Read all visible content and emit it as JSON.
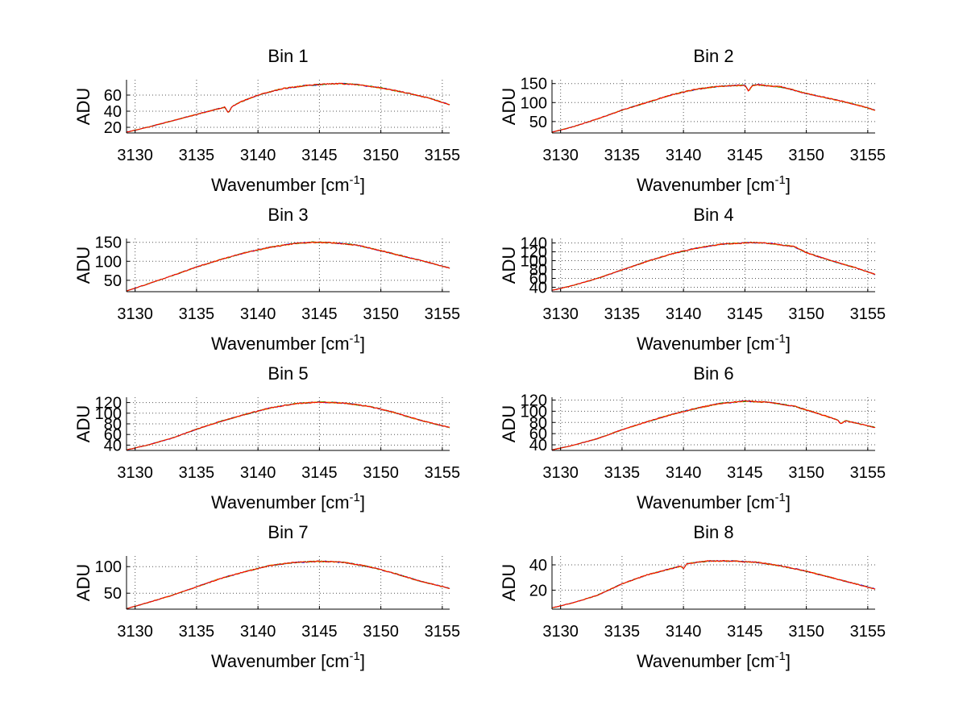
{
  "chart_data": [
    {
      "type": "line",
      "title": "Bin 1",
      "xlabel": "Wavenumber [cm",
      "xlabel_sup": "-1",
      "xlabel_end": "]",
      "ylabel": "ADU",
      "xlim": [
        3129.3,
        3155.6
      ],
      "ylim": [
        13,
        79
      ],
      "grid": true,
      "xticks": [
        3130,
        3135,
        3140,
        3145,
        3150,
        3155
      ],
      "yticks": [
        20,
        40,
        60
      ],
      "x": [
        3129.3,
        3131,
        3133,
        3135,
        3136.5,
        3137.3,
        3137.6,
        3137.9,
        3138.5,
        3140,
        3142,
        3144,
        3146,
        3147,
        3148,
        3150,
        3152,
        3154,
        3155.6
      ],
      "y": [
        14,
        20,
        28,
        36,
        42,
        45,
        38,
        46,
        51,
        60,
        68,
        72,
        74,
        74,
        73,
        69,
        63,
        56,
        48
      ]
    },
    {
      "type": "line",
      "title": "Bin 2",
      "xlabel": "Wavenumber [cm",
      "xlabel_sup": "-1",
      "xlabel_end": "]",
      "ylabel": "ADU",
      "xlim": [
        3129.3,
        3155.6
      ],
      "ylim": [
        20,
        160
      ],
      "grid": true,
      "xticks": [
        3130,
        3135,
        3140,
        3145,
        3150,
        3155
      ],
      "yticks": [
        50,
        100,
        150
      ],
      "x": [
        3129.3,
        3131,
        3133,
        3135,
        3137,
        3139,
        3141,
        3143,
        3145,
        3145.3,
        3145.6,
        3146,
        3148,
        3150,
        3152,
        3154,
        3155.6
      ],
      "y": [
        22,
        36,
        57,
        80,
        100,
        120,
        135,
        143,
        146,
        130,
        145,
        147,
        141,
        124,
        110,
        95,
        80
      ]
    },
    {
      "type": "line",
      "title": "Bin 3",
      "xlabel": "Wavenumber [cm",
      "xlabel_sup": "-1",
      "xlabel_end": "]",
      "ylabel": "ADU",
      "xlim": [
        3129.3,
        3155.6
      ],
      "ylim": [
        20,
        160
      ],
      "grid": true,
      "xticks": [
        3130,
        3135,
        3140,
        3145,
        3150,
        3155
      ],
      "yticks": [
        50,
        100,
        150
      ],
      "x": [
        3129.3,
        3131,
        3133,
        3135,
        3137,
        3139,
        3141,
        3143,
        3144.5,
        3146,
        3148,
        3150,
        3152,
        3154,
        3155.6
      ],
      "y": [
        22,
        40,
        62,
        85,
        105,
        123,
        137,
        147,
        150,
        149,
        143,
        128,
        112,
        96,
        82
      ]
    },
    {
      "type": "line",
      "title": "Bin 4",
      "xlabel": "Wavenumber [cm",
      "xlabel_sup": "-1",
      "xlabel_end": "]",
      "ylabel": "ADU",
      "xlim": [
        3129.3,
        3155.6
      ],
      "ylim": [
        30,
        150
      ],
      "grid": true,
      "xticks": [
        3130,
        3135,
        3140,
        3145,
        3150,
        3155
      ],
      "yticks": [
        40,
        60,
        80,
        100,
        120,
        140
      ],
      "x": [
        3129.3,
        3131,
        3133,
        3135,
        3137,
        3139,
        3141,
        3143,
        3145.5,
        3147,
        3149,
        3150,
        3152,
        3154,
        3155.6
      ],
      "y": [
        33,
        44,
        60,
        79,
        98,
        115,
        128,
        137,
        141,
        139,
        132,
        118,
        100,
        84,
        69
      ]
    },
    {
      "type": "line",
      "title": "Bin 5",
      "xlabel": "Wavenumber [cm",
      "xlabel_sup": "-1",
      "xlabel_end": "]",
      "ylabel": "ADU",
      "xlim": [
        3129.3,
        3155.6
      ],
      "ylim": [
        30,
        130
      ],
      "grid": true,
      "xticks": [
        3130,
        3135,
        3140,
        3145,
        3150,
        3155
      ],
      "yticks": [
        40,
        60,
        80,
        100,
        120
      ],
      "x": [
        3129.3,
        3131,
        3133,
        3135,
        3137,
        3139,
        3141,
        3143,
        3145,
        3147,
        3149,
        3151,
        3153,
        3155.6
      ],
      "y": [
        31,
        40,
        53,
        70,
        85,
        98,
        110,
        118,
        121,
        119,
        113,
        102,
        88,
        73
      ]
    },
    {
      "type": "line",
      "title": "Bin 6",
      "xlabel": "Wavenumber [cm",
      "xlabel_sup": "-1",
      "xlabel_end": "]",
      "ylabel": "ADU",
      "xlim": [
        3129.3,
        3155.6
      ],
      "ylim": [
        30,
        125
      ],
      "grid": true,
      "xticks": [
        3130,
        3135,
        3140,
        3145,
        3150,
        3155
      ],
      "yticks": [
        40,
        60,
        80,
        100,
        120
      ],
      "x": [
        3129.3,
        3131,
        3133,
        3135,
        3137,
        3139,
        3141,
        3143,
        3145,
        3147,
        3149,
        3150.5,
        3152.5,
        3152.8,
        3153.2,
        3155.6
      ],
      "y": [
        31,
        39,
        51,
        67,
        81,
        94,
        105,
        114,
        118,
        116,
        109,
        99,
        85,
        78,
        83,
        71
      ]
    },
    {
      "type": "line",
      "title": "Bin 7",
      "xlabel": "Wavenumber [cm",
      "xlabel_sup": "-1",
      "xlabel_end": "]",
      "ylabel": "ADU",
      "xlim": [
        3129.3,
        3155.6
      ],
      "ylim": [
        20,
        120
      ],
      "grid": true,
      "xticks": [
        3130,
        3135,
        3140,
        3145,
        3150,
        3155
      ],
      "yticks": [
        50,
        100
      ],
      "x": [
        3129.3,
        3131,
        3133,
        3135,
        3137,
        3139,
        3141,
        3143,
        3145,
        3147,
        3149,
        3151,
        3153,
        3155.6
      ],
      "y": [
        21,
        32,
        46,
        62,
        78,
        91,
        102,
        108,
        110,
        108,
        100,
        88,
        74,
        59
      ]
    },
    {
      "type": "line",
      "title": "Bin 8",
      "xlabel": "Wavenumber [cm",
      "xlabel_sup": "-1",
      "xlabel_end": "]",
      "ylabel": "ADU",
      "xlim": [
        3129.3,
        3155.6
      ],
      "ylim": [
        5,
        47
      ],
      "grid": true,
      "xticks": [
        3130,
        3135,
        3140,
        3145,
        3150,
        3155
      ],
      "yticks": [
        20,
        40
      ],
      "x": [
        3129.3,
        3131,
        3133,
        3135,
        3137,
        3139,
        3139.8,
        3140,
        3140.3,
        3142,
        3144,
        3146,
        3148,
        3150,
        3152,
        3154,
        3155.6
      ],
      "y": [
        6,
        10,
        16,
        25,
        32,
        37,
        39,
        37,
        41,
        43,
        43,
        42,
        39,
        35,
        30,
        25,
        21
      ]
    }
  ],
  "series_colors": [
    "#0000ff",
    "#00a000",
    "#e0a000",
    "#ff0000"
  ],
  "axis_color": "#000000",
  "grid_color": "#555555"
}
